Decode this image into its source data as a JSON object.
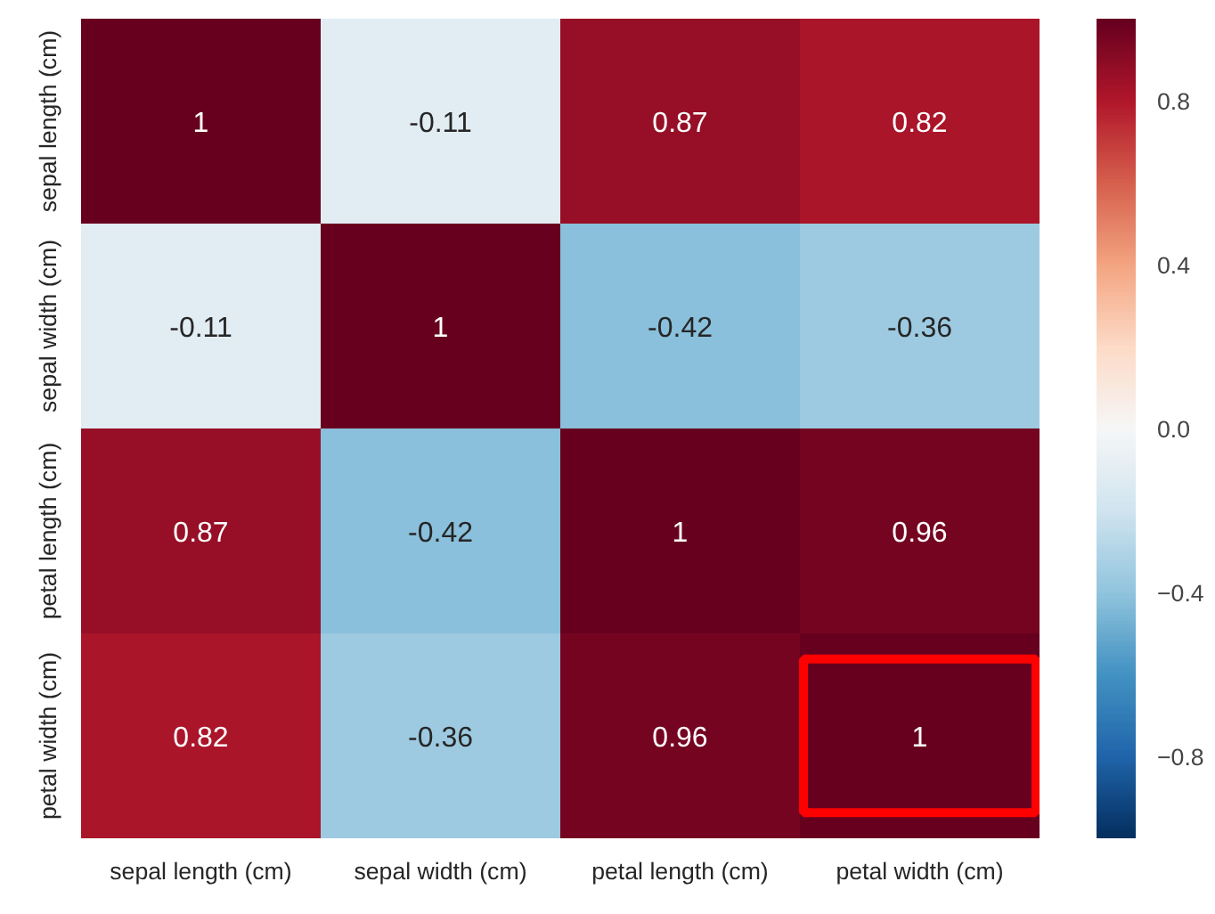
{
  "chart_data": {
    "type": "heatmap",
    "categories": [
      "sepal length (cm)",
      "sepal width (cm)",
      "petal length (cm)",
      "petal width (cm)"
    ],
    "y_categories": [
      "sepal length (cm)",
      "sepal width (cm)",
      "petal length (cm)",
      "petal width (cm)"
    ],
    "cells": [
      [
        1,
        -0.11,
        0.87,
        0.82
      ],
      [
        -0.11,
        1,
        -0.42,
        -0.36
      ],
      [
        0.87,
        -0.42,
        1,
        0.96
      ],
      [
        0.82,
        -0.36,
        0.96,
        1
      ]
    ],
    "data_labels": true,
    "clim": [
      -1,
      1
    ],
    "cticks": [
      {
        "value": -0.8,
        "label": "−0.8"
      },
      {
        "value": -0.4,
        "label": "−0.4"
      },
      {
        "value": 0,
        "label": "0.0"
      },
      0.4,
      0.8
    ]
  }
}
